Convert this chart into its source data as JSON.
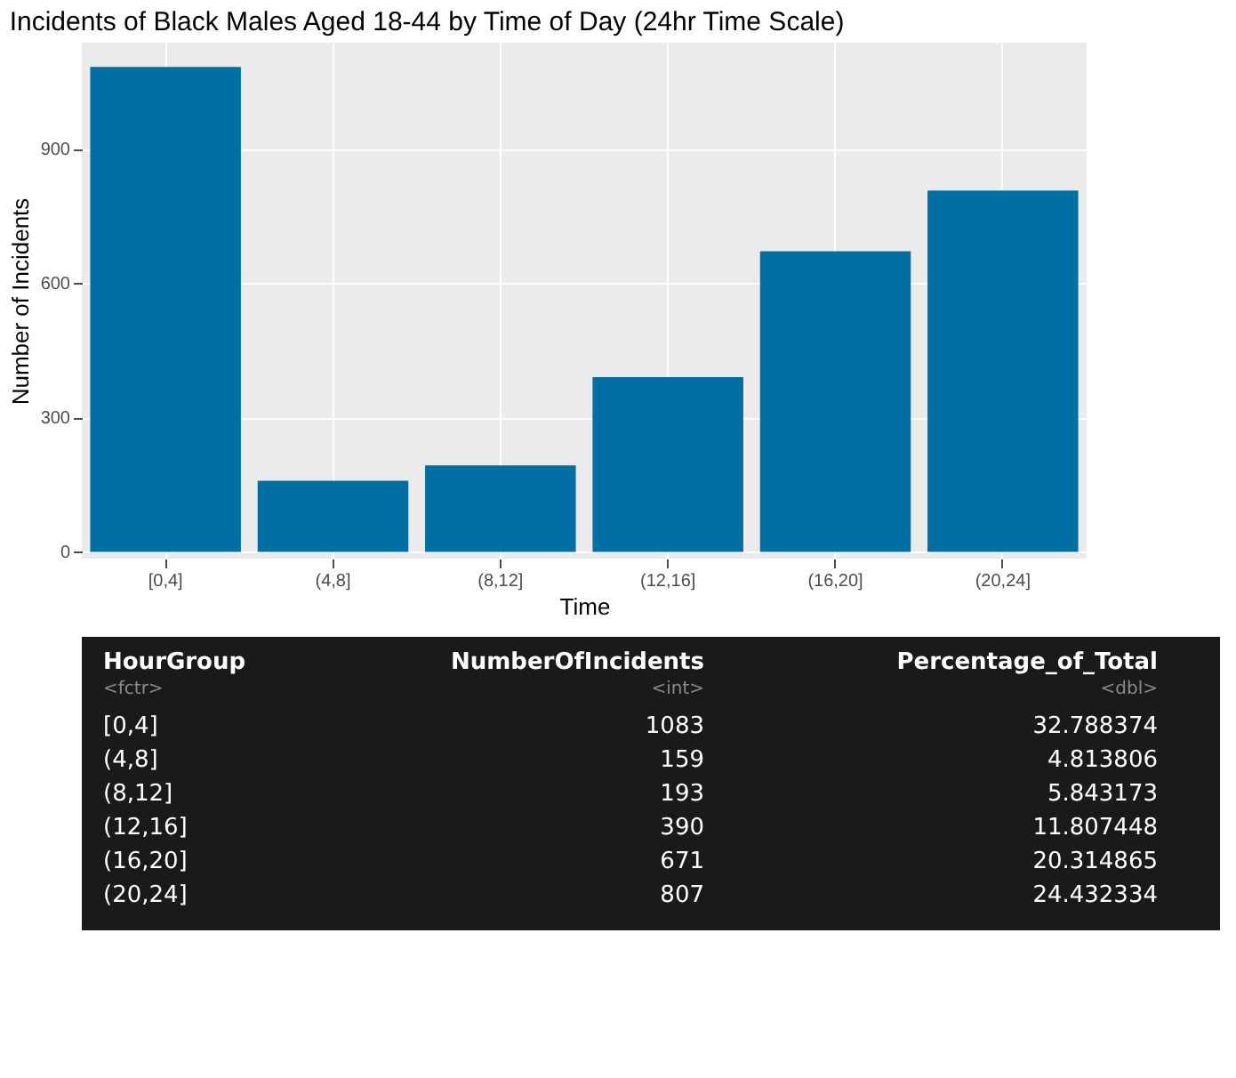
{
  "chart_data": {
    "type": "bar",
    "title": "Incidents of Black Males Aged 18-44 by Time of Day (24hr Time Scale)",
    "xlabel": "Time",
    "ylabel": "Number of Incidents",
    "categories": [
      "[0,4]",
      "(4,8]",
      "(8,12]",
      "(12,16]",
      "(16,20]",
      "(20,24]"
    ],
    "values": [
      1083,
      159,
      193,
      390,
      671,
      807
    ],
    "color": "#006fa3",
    "ylim": [
      -15,
      1137
    ],
    "yticks": [
      0,
      300,
      600,
      900
    ],
    "grid": true,
    "annotations": [
      "HourGroup",
      "<fctr>",
      "NumberOfIncidents",
      "<int>",
      "Percentage_of_Total",
      "<dbl>",
      "1083",
      "32.788374",
      "159",
      "4.813806",
      "193",
      "5.843173",
      "390",
      "11.807448",
      "671",
      "20.314865",
      "807",
      "24.432334"
    ]
  }
}
